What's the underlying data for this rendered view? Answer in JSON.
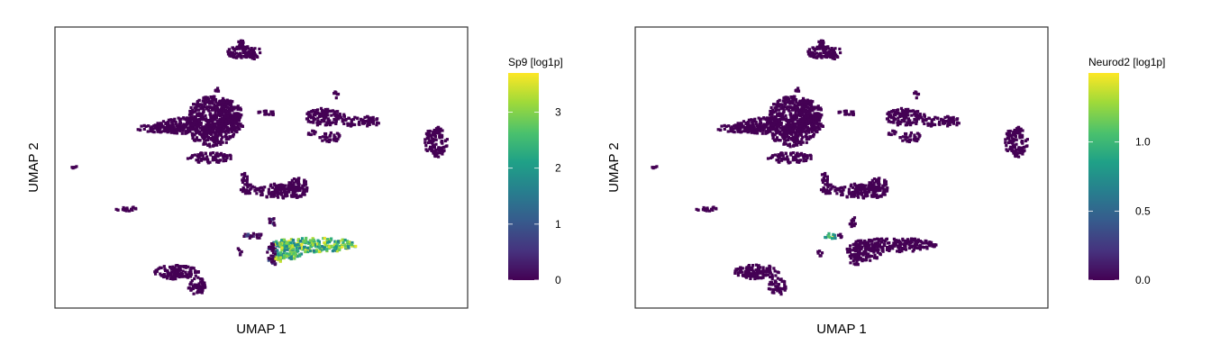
{
  "chart_data": [
    {
      "type": "scatter",
      "subtype": "hexbin-embedding",
      "xlabel": "UMAP 1",
      "ylabel": "UMAP 2",
      "colorbar": {
        "title": "Sp9 [log1p]",
        "colormap": "viridis",
        "range": [
          0,
          3.7
        ],
        "ticks": [
          0,
          1,
          2,
          3
        ],
        "tick_labels": [
          "0",
          "1",
          "2",
          "3"
        ]
      },
      "highlighted_clusters": [
        {
          "cluster": "lower-middle",
          "value_range": [
            1.5,
            3.7
          ],
          "peak": 3.7
        }
      ],
      "other_clusters_value": 0
    },
    {
      "type": "scatter",
      "subtype": "hexbin-embedding",
      "xlabel": "UMAP 1",
      "ylabel": "UMAP 2",
      "colorbar": {
        "title": "Neurod2 [log1p]",
        "colormap": "viridis",
        "range": [
          0,
          1.5
        ],
        "ticks": [
          0.0,
          0.5,
          1.0
        ],
        "tick_labels": [
          "0.0",
          "0.5",
          "1.0"
        ]
      },
      "highlighted_clusters": [
        {
          "cluster": "lower-middle-left-tip",
          "value_range": [
            0.6,
            1.5
          ],
          "peak": 1.5
        }
      ],
      "other_clusters_value": 0
    }
  ]
}
